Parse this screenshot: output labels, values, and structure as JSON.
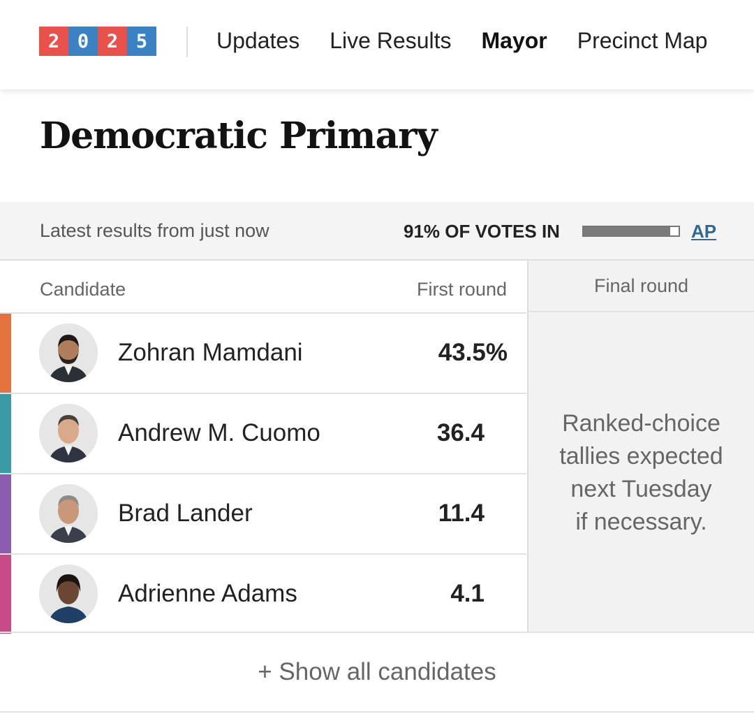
{
  "logo": {
    "digits": [
      {
        "text": "2",
        "color": "#e8524a"
      },
      {
        "text": "0",
        "color": "#3b82c4"
      },
      {
        "text": "2",
        "color": "#e8524a"
      },
      {
        "text": "5",
        "color": "#3b82c4"
      }
    ]
  },
  "nav": {
    "items": [
      {
        "label": "Updates",
        "active": false
      },
      {
        "label": "Live Results",
        "active": false
      },
      {
        "label": "Mayor",
        "active": true
      },
      {
        "label": "Precinct Map",
        "active": false
      }
    ]
  },
  "title": "Democratic Primary",
  "status": {
    "latest": "Latest results from just now",
    "votes_in_label": "91% OF VOTES IN",
    "votes_in_fraction": 0.91,
    "source": "AP"
  },
  "table": {
    "headers": {
      "candidate": "Candidate",
      "first_round": "First round",
      "final_round": "Final round"
    },
    "final_round_note": "Ranked-choice\ntallies expected\nnext Tuesday\nif necessary.",
    "candidates": [
      {
        "name": "Zohran Mamdani",
        "first_round": "43.5%",
        "color": "#e4733f"
      },
      {
        "name": "Andrew M. Cuomo",
        "first_round": "36.4",
        "color": "#3a9aa6"
      },
      {
        "name": "Brad Lander",
        "first_round": "11.4",
        "color": "#8a5bb0"
      },
      {
        "name": "Adrienne Adams",
        "first_round": "4.1",
        "color": "#c84a88"
      }
    ]
  },
  "show_all": "+ Show all candidates"
}
